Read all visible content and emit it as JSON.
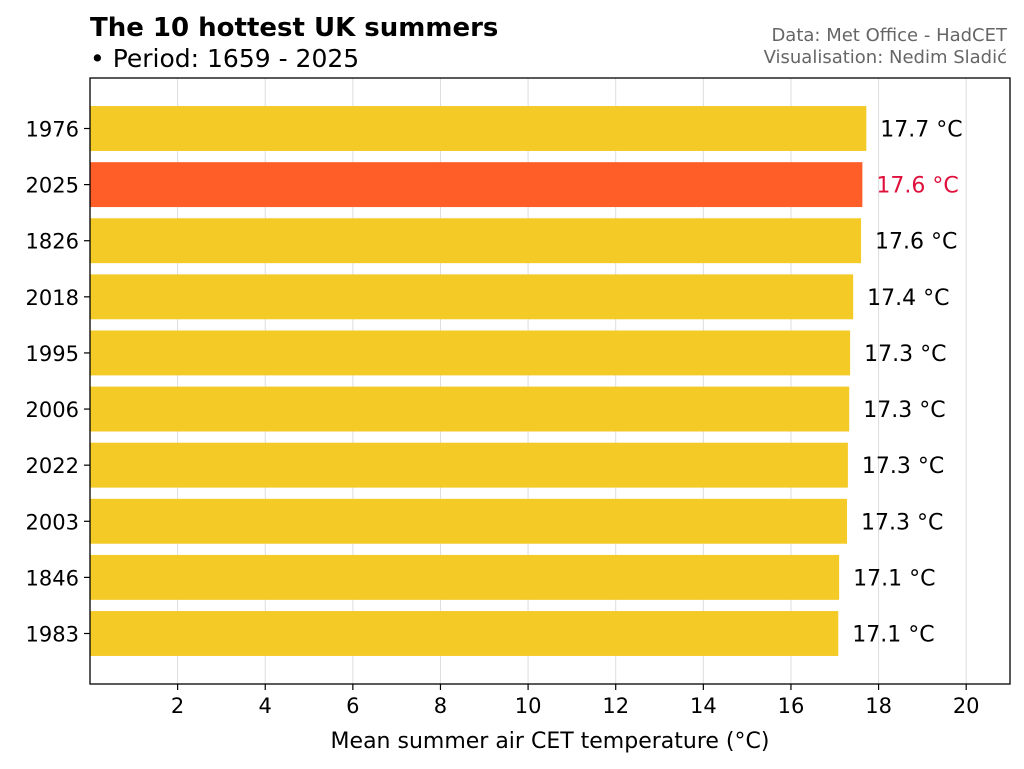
{
  "chart_data": {
    "type": "bar",
    "orientation": "horizontal",
    "title": "The 10 hottest UK summers",
    "subtitle": "• Period: 1659 - 2025",
    "credits": [
      "Data: Met Office - HadCET",
      "Visualisation: Nedim Sladić"
    ],
    "xlabel": "Mean summer air CET temperature (°C)",
    "ylabel": "",
    "xlim": [
      0,
      21
    ],
    "xticks": [
      2,
      4,
      6,
      8,
      10,
      12,
      14,
      16,
      18,
      20
    ],
    "grid": "vertical",
    "categories": [
      "1976",
      "2025",
      "1826",
      "2018",
      "1995",
      "2006",
      "2022",
      "2003",
      "1846",
      "1983"
    ],
    "values": [
      17.72,
      17.63,
      17.6,
      17.42,
      17.35,
      17.33,
      17.3,
      17.28,
      17.1,
      17.08
    ],
    "value_labels": [
      "17.7 °C",
      "17.6 °C",
      "17.6 °C",
      "17.4 °C",
      "17.3 °C",
      "17.3 °C",
      "17.3 °C",
      "17.3 °C",
      "17.1 °C",
      "17.1 °C"
    ],
    "highlight": "2025",
    "colors": {
      "bar": "#F4CA27",
      "highlight_bar": "#FF5E28",
      "highlight_label": "#E0103C",
      "label": "#000000",
      "credit": "#666666",
      "grid": "#DDDDDD"
    }
  }
}
